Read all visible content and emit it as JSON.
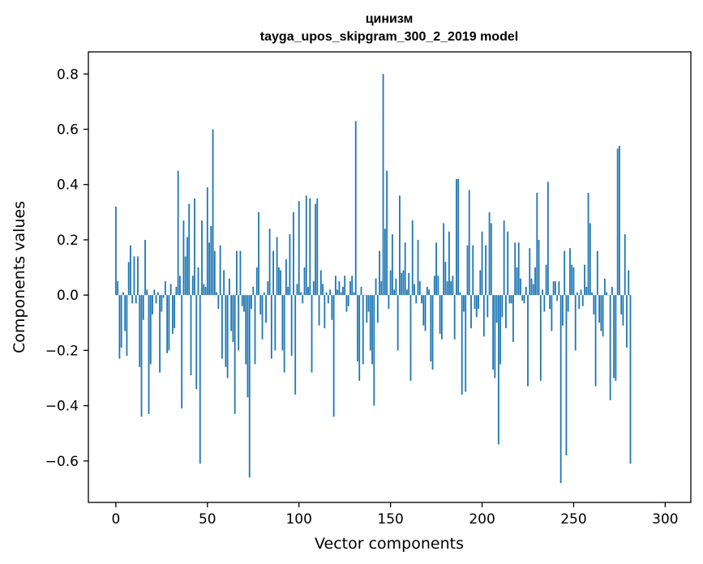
{
  "chart_data": {
    "type": "bar",
    "title": "цинизм",
    "subtitle": "tayga_upos_skipgram_300_2_2019 model",
    "xlabel": "Vector components",
    "ylabel": "Components values",
    "xlim": [
      -15,
      314
    ],
    "ylim": [
      -0.75,
      0.88
    ],
    "xticks": [
      0,
      50,
      100,
      150,
      200,
      250,
      300
    ],
    "xtick_labels": [
      "0",
      "50",
      "100",
      "150",
      "200",
      "250",
      "300"
    ],
    "yticks": [
      -0.6,
      -0.4,
      -0.2,
      0.0,
      0.2,
      0.4,
      0.6,
      0.8
    ],
    "ytick_labels": [
      "−0.6",
      "−0.4",
      "−0.2",
      "0.0",
      "0.2",
      "0.4",
      "0.6",
      "0.8"
    ],
    "bar_color": "#1f77b4",
    "values": [
      0.32,
      0.05,
      -0.23,
      -0.19,
      0.01,
      -0.13,
      -0.22,
      0.12,
      0.18,
      -0.03,
      0.14,
      -0.03,
      0.14,
      -0.26,
      -0.44,
      -0.09,
      0.2,
      0.02,
      -0.43,
      -0.25,
      -0.07,
      0.02,
      -0.03,
      0.01,
      -0.28,
      -0.06,
      -0.01,
      0.05,
      -0.21,
      -0.2,
      0.04,
      -0.14,
      -0.12,
      0.03,
      0.45,
      0.07,
      -0.41,
      0.27,
      0.14,
      0.21,
      0.33,
      -0.29,
      0.07,
      0.35,
      -0.34,
      0.1,
      -0.61,
      0.27,
      0.04,
      0.03,
      0.39,
      0.19,
      0.25,
      0.6,
      0.16,
      0.01,
      -0.05,
      0.18,
      -0.23,
      0.09,
      -0.26,
      -0.3,
      0.06,
      -0.13,
      -0.17,
      -0.43,
      0.16,
      -0.2,
      0.16,
      -0.04,
      -0.06,
      -0.25,
      -0.37,
      -0.66,
      -0.05,
      0.03,
      -0.25,
      0.1,
      0.3,
      -0.07,
      -0.16,
      0.01,
      -0.1,
      0.05,
      0.24,
      -0.23,
      0.16,
      -0.2,
      0.21,
      0.1,
      0.09,
      -0.2,
      -0.28,
      0.13,
      0.03,
      0.22,
      -0.22,
      0.3,
      -0.36,
      0.04,
      0.34,
      0.01,
      -0.03,
      0.1,
      0.36,
      0.03,
      0.35,
      -0.28,
      0.05,
      0.33,
      0.35,
      -0.11,
      0.09,
      0.04,
      -0.12,
      0.01,
      -0.03,
      0.02,
      -0.09,
      -0.44,
      0.07,
      0.02,
      0.05,
      0.01,
      0.03,
      0.07,
      -0.06,
      -0.04,
      0.05,
      0.07,
      0.01,
      0.63,
      -0.24,
      -0.31,
      0.03,
      -0.25,
      0.0,
      -0.1,
      -0.06,
      -0.2,
      -0.25,
      -0.4,
      0.06,
      -0.1,
      0.16,
      0.05,
      0.8,
      0.24,
      0.45,
      -0.05,
      0.09,
      0.22,
      0.02,
      0.06,
      -0.2,
      0.36,
      0.08,
      0.09,
      0.19,
      0.02,
      0.08,
      -0.31,
      0.27,
      0.04,
      -0.03,
      0.2,
      0.05,
      -0.03,
      -0.11,
      -0.13,
      0.03,
      0.02,
      -0.24,
      -0.27,
      0.07,
      0.19,
      0.07,
      -0.14,
      -0.16,
      0.26,
      0.12,
      0.05,
      0.23,
      0.05,
      0.07,
      -0.16,
      0.42,
      0.42,
      0.01,
      -0.36,
      -0.06,
      -0.35,
      0.18,
      0.38,
      -0.12,
      0.18,
      -0.05,
      -0.08,
      -0.05,
      0.09,
      0.23,
      -0.15,
      0.18,
      -0.08,
      0.3,
      0.26,
      -0.27,
      -0.3,
      -0.1,
      -0.54,
      -0.25,
      -0.08,
      0.27,
      -0.12,
      0.23,
      -0.03,
      -0.03,
      -0.17,
      0.19,
      0.1,
      0.19,
      0.06,
      -0.02,
      -0.03,
      0.03,
      -0.33,
      0.17,
      0.06,
      0.04,
      0.1,
      0.37,
      0.2,
      -0.31,
      0.02,
      -0.06,
      0.11,
      0.41,
      -0.05,
      -0.13,
      0.05,
      0.05,
      -0.02,
      0.05,
      -0.68,
      -0.11,
      0.16,
      -0.58,
      -0.06,
      0.17,
      0.11,
      0.1,
      -0.2,
      0.01,
      -0.05,
      0.02,
      -0.04,
      0.11,
      0.03,
      0.37,
      0.26,
      0.01,
      -0.07,
      -0.33,
      0.16,
      -0.1,
      -0.13,
      -0.15,
      0.06,
      0.01,
      0.0,
      -0.38,
      0.03,
      -0.3,
      -0.31,
      0.53,
      0.54,
      -0.07,
      -0.11,
      0.22,
      -0.19,
      0.09,
      -0.61
    ]
  }
}
